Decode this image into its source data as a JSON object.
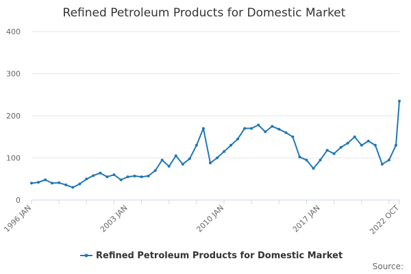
{
  "chart_data": {
    "type": "line",
    "title": "Refined Petroleum Products for Domestic Market",
    "xlabel": "",
    "ylabel": "",
    "ylim": [
      0,
      400
    ],
    "yticks": [
      0,
      100,
      200,
      300,
      400
    ],
    "grid": true,
    "legend_position": "bottom",
    "color": "#1f77b4",
    "xtick_labels": [
      "1996 JAN",
      "2003 JAN",
      "2010 JAN",
      "2017 JAN",
      "2022 OCT"
    ],
    "source_label": "Source:",
    "series": [
      {
        "name": "Refined Petroleum Products for Domestic Market",
        "x": [
          "1996 JAN",
          "1996 JUL",
          "1997 JAN",
          "1997 JUL",
          "1998 JAN",
          "1998 JUL",
          "1999 JAN",
          "1999 JUL",
          "2000 JAN",
          "2000 JUL",
          "2001 JAN",
          "2001 JUL",
          "2002 JAN",
          "2002 JUL",
          "2003 JAN",
          "2003 JUL",
          "2004 JAN",
          "2004 JUL",
          "2005 JAN",
          "2005 JUL",
          "2006 JAN",
          "2006 JUL",
          "2007 JAN",
          "2007 JUL",
          "2008 JAN",
          "2008 JUL",
          "2009 JAN",
          "2009 JUL",
          "2010 JAN",
          "2010 JUL",
          "2011 JAN",
          "2011 JUL",
          "2012 JAN",
          "2012 JUL",
          "2013 JAN",
          "2013 JUL",
          "2014 JAN",
          "2014 JUL",
          "2015 JAN",
          "2015 JUL",
          "2016 JAN",
          "2016 JUL",
          "2017 JAN",
          "2017 JUL",
          "2018 JAN",
          "2018 JUL",
          "2019 JAN",
          "2019 JUL",
          "2020 JAN",
          "2020 JUL",
          "2021 JAN",
          "2021 JUL",
          "2022 JAN",
          "2022 JUL",
          "2022 OCT"
        ],
        "values": [
          40,
          42,
          48,
          40,
          41,
          36,
          30,
          38,
          50,
          58,
          64,
          55,
          60,
          48,
          55,
          57,
          55,
          57,
          70,
          95,
          80,
          105,
          85,
          98,
          130,
          170,
          88,
          100,
          115,
          130,
          145,
          170,
          170,
          178,
          162,
          175,
          168,
          160,
          150,
          102,
          95,
          75,
          95,
          118,
          110,
          125,
          135,
          150,
          130,
          140,
          130,
          85,
          95,
          130,
          235
        ]
      }
    ]
  }
}
